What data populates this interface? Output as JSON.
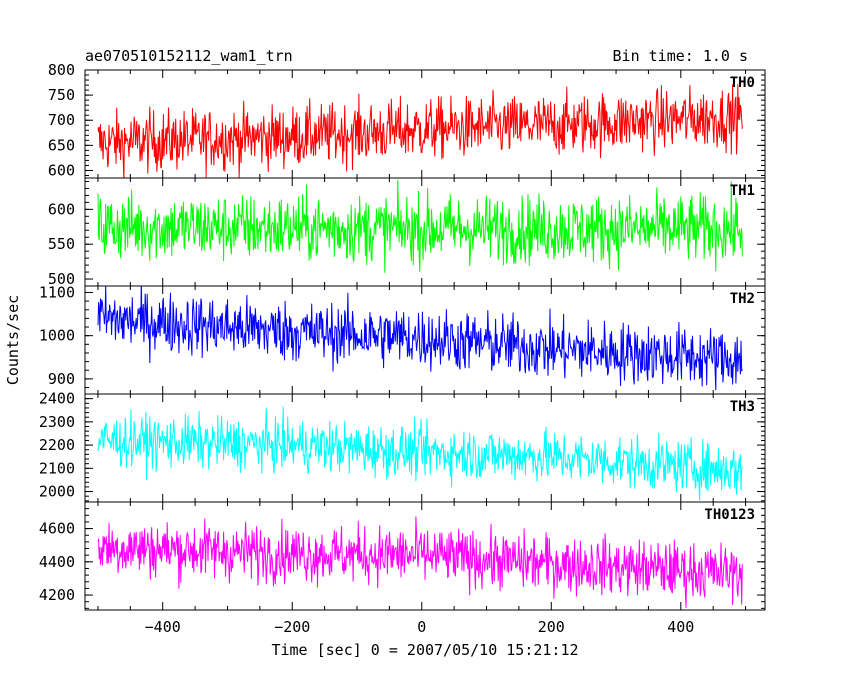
{
  "chart_data": {
    "type": "line",
    "title": "ae070510152112_wam1_trn",
    "subtitle": "Bin time: 1.0 s",
    "xlabel": "Time [sec] 0 = 2007/05/10 15:21:12",
    "ylabel": "Counts/sec",
    "xlim": [
      -520,
      530
    ],
    "x_ticks": [
      -400,
      -200,
      0,
      200,
      400
    ],
    "x_tick_labels": [
      "−400",
      "−200",
      "0",
      "200",
      "400"
    ],
    "x_range": [
      -500,
      495
    ],
    "grid": false,
    "panels": [
      {
        "name": "TH0",
        "color": "#ff0000",
        "ylim": [
          585,
          800
        ],
        "y_ticks": [
          600,
          650,
          700,
          750,
          800
        ],
        "y_tick_labels": [
          "600",
          "650",
          "700",
          "750",
          "800"
        ],
        "trend": [
          [
            -500,
            655
          ],
          [
            -200,
            668
          ],
          [
            0,
            682
          ],
          [
            200,
            690
          ],
          [
            495,
            708
          ]
        ],
        "noise": 30
      },
      {
        "name": "TH1",
        "color": "#00ff00",
        "ylim": [
          490,
          645
        ],
        "y_ticks": [
          500,
          550,
          600
        ],
        "y_tick_labels": [
          "500",
          "550",
          "600"
        ],
        "trend": [
          [
            -500,
            575
          ],
          [
            0,
            572
          ],
          [
            495,
            572
          ]
        ],
        "noise": 24
      },
      {
        "name": "TH2",
        "color": "#0000ff",
        "ylim": [
          865,
          1115
        ],
        "y_ticks": [
          900,
          1000,
          1100
        ],
        "y_tick_labels": [
          "900",
          "1000",
          "1100"
        ],
        "trend": [
          [
            -500,
            1040
          ],
          [
            -200,
            1010
          ],
          [
            0,
            995
          ],
          [
            200,
            970
          ],
          [
            495,
            945
          ]
        ],
        "noise": 35
      },
      {
        "name": "TH3",
        "color": "#00ffff",
        "ylim": [
          1955,
          2420
        ],
        "y_ticks": [
          2000,
          2100,
          2200,
          2300,
          2400
        ],
        "y_tick_labels": [
          "2000",
          "2100",
          "2200",
          "2300",
          "2400"
        ],
        "trend": [
          [
            -500,
            2220
          ],
          [
            -200,
            2200
          ],
          [
            0,
            2170
          ],
          [
            200,
            2150
          ],
          [
            495,
            2090
          ]
        ],
        "noise": 55
      },
      {
        "name": "TH0123",
        "color": "#ff00ff",
        "ylim": [
          4110,
          4760
        ],
        "y_ticks": [
          4200,
          4400,
          4600
        ],
        "y_tick_labels": [
          "4200",
          "4400",
          "4600"
        ],
        "trend": [
          [
            -500,
            4490
          ],
          [
            -200,
            4450
          ],
          [
            0,
            4440
          ],
          [
            200,
            4390
          ],
          [
            495,
            4330
          ]
        ],
        "noise": 85
      }
    ]
  }
}
